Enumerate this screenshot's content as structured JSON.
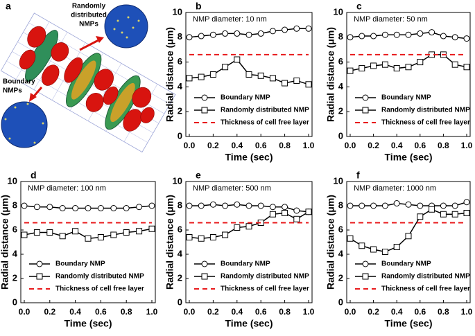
{
  "illustration": {
    "label": "a",
    "random_label": [
      "Randomly",
      "distributed",
      "NMPs"
    ],
    "boundary_label": [
      "Boundary",
      "NMPs"
    ]
  },
  "chart_data": [
    {
      "type": "line",
      "panel": "b",
      "annotation": "NMP diameter: 10 nm",
      "xlabel": "Time (sec)",
      "ylabel": "Radial distance (μm)",
      "x": [
        0,
        0.1,
        0.2,
        0.3,
        0.4,
        0.5,
        0.6,
        0.7,
        0.8,
        0.9,
        1
      ],
      "series": [
        {
          "name": "Boundary NMP",
          "color": "#000000",
          "marker": "circle",
          "values": [
            8.0,
            8.1,
            8.2,
            8.3,
            8.3,
            8.2,
            8.3,
            8.5,
            8.6,
            8.7,
            8.7
          ]
        },
        {
          "name": "Randomly distributed NMP",
          "color": "#000000",
          "marker": "square",
          "values": [
            4.7,
            4.8,
            5.0,
            5.6,
            6.2,
            5.0,
            4.9,
            4.7,
            4.3,
            4.5,
            4.2
          ]
        },
        {
          "name": "Thickness of cell free layer",
          "color": "#e8191b",
          "dashed": true,
          "values": [
            6.6,
            6.6,
            6.6,
            6.6,
            6.6,
            6.6,
            6.6,
            6.6,
            6.6,
            6.6,
            6.6
          ]
        }
      ],
      "xlim": [
        0,
        1
      ],
      "ylim": [
        0,
        10
      ],
      "xticks": [
        {
          "value": 0,
          "label": "0.0"
        },
        0.2,
        0.4,
        0.6,
        0.8,
        {
          "value": 1,
          "label": "1.0"
        }
      ],
      "yticks": [
        0,
        2,
        4,
        6,
        8,
        10
      ],
      "legend": "lower left"
    },
    {
      "type": "line",
      "panel": "c",
      "annotation": "NMP diameter: 50 nm",
      "xlabel": "Time (sec)",
      "ylabel": "Radial distance (μm)",
      "x": [
        0,
        0.1,
        0.2,
        0.3,
        0.4,
        0.5,
        0.6,
        0.7,
        0.8,
        0.9,
        1
      ],
      "series": [
        {
          "name": "Boundary NMP",
          "color": "#000000",
          "marker": "circle",
          "values": [
            8.0,
            8.1,
            8.1,
            8.2,
            8.2,
            8.2,
            8.3,
            8.4,
            8.1,
            8.0,
            7.9
          ]
        },
        {
          "name": "Randomly distributed NMP",
          "color": "#000000",
          "marker": "square",
          "values": [
            5.3,
            5.5,
            5.7,
            5.8,
            5.5,
            5.6,
            6.0,
            6.6,
            6.6,
            5.8,
            5.6
          ]
        },
        {
          "name": "Thickness of cell free layer",
          "color": "#e8191b",
          "dashed": true,
          "values": [
            6.6,
            6.6,
            6.6,
            6.6,
            6.6,
            6.6,
            6.6,
            6.6,
            6.6,
            6.6,
            6.6
          ]
        }
      ],
      "xlim": [
        0,
        1
      ],
      "ylim": [
        0,
        10
      ],
      "xticks": [
        {
          "value": 0,
          "label": "0.0"
        },
        0.2,
        0.4,
        0.6,
        0.8,
        {
          "value": 1,
          "label": "1.0"
        }
      ],
      "yticks": [
        0,
        2,
        4,
        6,
        8,
        10
      ],
      "legend": "lower left"
    },
    {
      "type": "line",
      "panel": "d",
      "annotation": "NMP diameter: 100 nm",
      "xlabel": "Time (sec)",
      "ylabel": "Radial distance (μm)",
      "x": [
        0,
        0.1,
        0.2,
        0.3,
        0.4,
        0.5,
        0.6,
        0.7,
        0.8,
        0.9,
        1
      ],
      "series": [
        {
          "name": "Boundary NMP",
          "color": "#000000",
          "marker": "circle",
          "values": [
            8.0,
            7.9,
            7.9,
            7.8,
            7.8,
            7.8,
            7.8,
            7.8,
            7.8,
            7.9,
            8.0
          ]
        },
        {
          "name": "Randomly distributed NMP",
          "color": "#000000",
          "marker": "square",
          "values": [
            5.6,
            5.8,
            5.8,
            5.5,
            5.9,
            5.3,
            5.4,
            5.6,
            5.8,
            5.9,
            6.1
          ]
        },
        {
          "name": "Thickness of cell free layer",
          "color": "#e8191b",
          "dashed": true,
          "values": [
            6.6,
            6.6,
            6.6,
            6.6,
            6.6,
            6.6,
            6.6,
            6.6,
            6.6,
            6.6,
            6.6
          ]
        }
      ],
      "xlim": [
        0,
        1
      ],
      "ylim": [
        0,
        10
      ],
      "xticks": [
        {
          "value": 0,
          "label": "0.0"
        },
        0.2,
        0.4,
        0.6,
        0.8,
        {
          "value": 1,
          "label": "1.0"
        }
      ],
      "yticks": [
        0,
        2,
        4,
        6,
        8,
        10
      ],
      "legend": "lower left"
    },
    {
      "type": "line",
      "panel": "e",
      "annotation": "NMP diameter: 500 nm",
      "xlabel": "Time (sec)",
      "ylabel": "Radial distance (μm)",
      "x": [
        0,
        0.1,
        0.2,
        0.3,
        0.4,
        0.5,
        0.6,
        0.7,
        0.8,
        0.9,
        1
      ],
      "series": [
        {
          "name": "Boundary NMP",
          "color": "#000000",
          "marker": "circle",
          "values": [
            8.0,
            8.0,
            8.1,
            8.0,
            8.1,
            8.0,
            8.0,
            7.9,
            7.9,
            7.6,
            7.5
          ]
        },
        {
          "name": "Randomly distributed NMP",
          "color": "#000000",
          "marker": "square",
          "values": [
            5.4,
            5.3,
            5.4,
            5.6,
            6.2,
            6.3,
            6.6,
            7.3,
            7.4,
            6.9,
            7.5
          ]
        },
        {
          "name": "Thickness of cell free layer",
          "color": "#e8191b",
          "dashed": true,
          "values": [
            6.6,
            6.6,
            6.6,
            6.6,
            6.6,
            6.6,
            6.6,
            6.6,
            6.6,
            6.6,
            6.6
          ]
        }
      ],
      "xlim": [
        0,
        1
      ],
      "ylim": [
        0,
        10
      ],
      "xticks": [
        {
          "value": 0,
          "label": "0.0"
        },
        0.2,
        0.4,
        0.6,
        0.8,
        {
          "value": 1,
          "label": "1.0"
        }
      ],
      "yticks": [
        0,
        2,
        4,
        6,
        8,
        10
      ],
      "legend": "lower left"
    },
    {
      "type": "line",
      "panel": "f",
      "annotation": "NMP diameter: 1000 nm",
      "xlabel": "Time (sec)",
      "ylabel": "Radial distance (μm)",
      "x": [
        0,
        0.1,
        0.2,
        0.3,
        0.4,
        0.5,
        0.6,
        0.7,
        0.8,
        0.9,
        1
      ],
      "series": [
        {
          "name": "Boundary NMP",
          "color": "#000000",
          "marker": "circle",
          "values": [
            8.0,
            8.0,
            8.0,
            8.0,
            8.2,
            8.1,
            8.0,
            8.0,
            8.0,
            8.0,
            8.3
          ]
        },
        {
          "name": "Randomly distributed NMP",
          "color": "#000000",
          "marker": "square",
          "values": [
            5.3,
            4.7,
            4.4,
            4.2,
            4.6,
            5.5,
            7.1,
            7.7,
            7.3,
            7.3,
            7.4
          ]
        },
        {
          "name": "Thickness of cell free layer",
          "color": "#e8191b",
          "dashed": true,
          "values": [
            6.6,
            6.6,
            6.6,
            6.6,
            6.6,
            6.6,
            6.6,
            6.6,
            6.6,
            6.6,
            6.6
          ]
        }
      ],
      "xlim": [
        0,
        1
      ],
      "ylim": [
        0,
        10
      ],
      "xticks": [
        {
          "value": 0,
          "label": "0.0"
        },
        0.2,
        0.4,
        0.6,
        0.8,
        {
          "value": 1,
          "label": "1.0"
        }
      ],
      "yticks": [
        0,
        2,
        4,
        6,
        8,
        10
      ],
      "legend": "lower left"
    }
  ]
}
